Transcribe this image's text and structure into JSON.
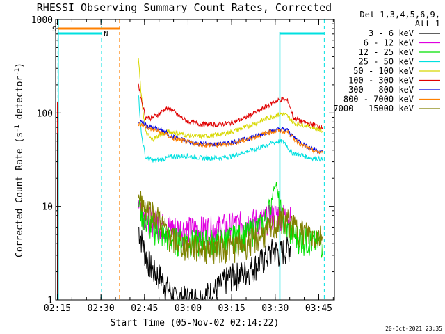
{
  "chart_data": {
    "type": "line",
    "title": "RHESSI Observing Summary Count Rates, Corrected",
    "xlabel": "Start Time (05-Nov-02 02:14:22)",
    "ylabel": "Corrected Count Rate (s",
    "ylabel_sup1": "-1",
    "ylabel_mid": " detector",
    "ylabel_sup2": "-1",
    "ylabel_end": ")",
    "x_range_minutes": [
      0,
      96
    ],
    "y_log": true,
    "ylim": [
      1,
      1000
    ],
    "x_ticks": [
      {
        "label": "02:15",
        "min": 0.6
      },
      {
        "label": "02:30",
        "min": 15.6
      },
      {
        "label": "02:45",
        "min": 30.6
      },
      {
        "label": "03:00",
        "min": 45.6
      },
      {
        "label": "03:15",
        "min": 60.6
      },
      {
        "label": "03:30",
        "min": 75.6
      },
      {
        "label": "03:45",
        "min": 90.6
      }
    ],
    "y_ticks": [
      {
        "label": "1",
        "value": 1
      },
      {
        "label": "10",
        "value": 10
      },
      {
        "label": "100",
        "value": 100
      },
      {
        "label": "1000",
        "value": 1000
      }
    ],
    "legend": {
      "header1": "Det 1,3,4,5,6,9,",
      "header2": "Att 1",
      "placement": "right"
    },
    "series": [
      {
        "name": "3 - 6 keV",
        "color": "#000000",
        "points": [
          [
            28.5,
            6
          ],
          [
            30,
            4
          ],
          [
            31,
            3
          ],
          [
            32,
            2.6
          ],
          [
            33,
            2.2
          ],
          [
            34,
            2
          ],
          [
            36,
            1.8
          ],
          [
            38,
            1.4
          ],
          [
            40,
            1.2
          ],
          [
            41,
            1.05
          ],
          [
            50,
            1.05
          ],
          [
            55,
            1.3
          ],
          [
            60,
            1.8
          ],
          [
            63,
            1.9
          ],
          [
            65,
            2
          ],
          [
            70,
            2.5
          ],
          [
            73,
            3
          ],
          [
            75,
            3.5
          ],
          [
            77,
            3.2
          ],
          [
            79,
            3.5
          ],
          [
            81,
            3.8
          ]
        ]
      },
      {
        "name": "6 - 12 keV",
        "color": "#e000e0",
        "points": [
          [
            28.5,
            12
          ],
          [
            30,
            9
          ],
          [
            32,
            7.5
          ],
          [
            34,
            7
          ],
          [
            36,
            6.5
          ],
          [
            38,
            6.2
          ],
          [
            40,
            6
          ],
          [
            45,
            5.8
          ],
          [
            50,
            5.8
          ],
          [
            55,
            6
          ],
          [
            60,
            6.3
          ],
          [
            65,
            6.8
          ],
          [
            70,
            7.2
          ],
          [
            73,
            7.5
          ],
          [
            75,
            8
          ],
          [
            77,
            8.5
          ],
          [
            79,
            8
          ],
          [
            81,
            7.5
          ]
        ]
      },
      {
        "name": "12 - 25 keV",
        "color": "#00e000",
        "points": [
          [
            28.5,
            11
          ],
          [
            30,
            8
          ],
          [
            32,
            6.5
          ],
          [
            34,
            5.8
          ],
          [
            36,
            5.2
          ],
          [
            38,
            4.8
          ],
          [
            40,
            4.5
          ],
          [
            45,
            4.3
          ],
          [
            50,
            4.2
          ],
          [
            55,
            4.3
          ],
          [
            60,
            4.6
          ],
          [
            65,
            5
          ],
          [
            70,
            6
          ],
          [
            72,
            7
          ],
          [
            74,
            10
          ],
          [
            75,
            15
          ],
          [
            76,
            18
          ],
          [
            77,
            10
          ],
          [
            79,
            6
          ],
          [
            82,
            5
          ],
          [
            85,
            4.5
          ],
          [
            88,
            4.2
          ],
          [
            92,
            4
          ]
        ]
      },
      {
        "name": "25 - 50 keV",
        "color": "#00e0e0",
        "points": [
          [
            28.5,
            165
          ],
          [
            29.5,
            60
          ],
          [
            31,
            33
          ],
          [
            34,
            31
          ],
          [
            37,
            32
          ],
          [
            40,
            34
          ],
          [
            45,
            35
          ],
          [
            50,
            33
          ],
          [
            55,
            33
          ],
          [
            60,
            34
          ],
          [
            65,
            38
          ],
          [
            70,
            42
          ],
          [
            73,
            46
          ],
          [
            75,
            48
          ],
          [
            77,
            50
          ],
          [
            79,
            48
          ],
          [
            81,
            38
          ],
          [
            85,
            35
          ],
          [
            88,
            33
          ],
          [
            92,
            32
          ]
        ]
      },
      {
        "name": "50 - 100 keV",
        "color": "#d8d800",
        "points": [
          [
            28.5,
            390
          ],
          [
            29.5,
            150
          ],
          [
            31,
            62
          ],
          [
            33,
            52
          ],
          [
            36,
            58
          ],
          [
            38,
            62
          ],
          [
            40,
            63
          ],
          [
            45,
            58
          ],
          [
            50,
            56
          ],
          [
            55,
            58
          ],
          [
            60,
            62
          ],
          [
            65,
            70
          ],
          [
            70,
            80
          ],
          [
            73,
            88
          ],
          [
            76,
            95
          ],
          [
            78,
            98
          ],
          [
            80,
            92
          ],
          [
            82,
            78
          ],
          [
            86,
            74
          ],
          [
            90,
            68
          ],
          [
            92,
            64
          ]
        ]
      },
      {
        "name": "100 - 300 keV",
        "color": "#e00000",
        "points": [
          [
            28.5,
            205
          ],
          [
            29.5,
            140
          ],
          [
            31,
            90
          ],
          [
            33,
            88
          ],
          [
            36,
            100
          ],
          [
            38,
            112
          ],
          [
            40,
            108
          ],
          [
            42,
            95
          ],
          [
            45,
            82
          ],
          [
            50,
            76
          ],
          [
            55,
            75
          ],
          [
            60,
            78
          ],
          [
            65,
            88
          ],
          [
            70,
            105
          ],
          [
            73,
            120
          ],
          [
            76,
            135
          ],
          [
            78,
            140
          ],
          [
            80,
            135
          ],
          [
            82,
            88
          ],
          [
            85,
            80
          ],
          [
            88,
            76
          ],
          [
            92,
            70
          ]
        ]
      },
      {
        "name": "300 - 800 keV",
        "color": "#0000e0",
        "points": [
          [
            28.5,
            80
          ],
          [
            30,
            78
          ],
          [
            32,
            72
          ],
          [
            35,
            68
          ],
          [
            38,
            62
          ],
          [
            40,
            56
          ],
          [
            45,
            50
          ],
          [
            50,
            47
          ],
          [
            55,
            46
          ],
          [
            60,
            48
          ],
          [
            65,
            52
          ],
          [
            70,
            58
          ],
          [
            73,
            63
          ],
          [
            76,
            66
          ],
          [
            78,
            67
          ],
          [
            80,
            65
          ],
          [
            82,
            55
          ],
          [
            85,
            47
          ],
          [
            88,
            42
          ],
          [
            92,
            38
          ]
        ]
      },
      {
        "name": "800 - 7000 keV",
        "color": "#ff8000",
        "points": [
          [
            28.5,
            76
          ],
          [
            30,
            74
          ],
          [
            32,
            69
          ],
          [
            35,
            64
          ],
          [
            38,
            59
          ],
          [
            40,
            54
          ],
          [
            45,
            49
          ],
          [
            50,
            46
          ],
          [
            55,
            45
          ],
          [
            60,
            47
          ],
          [
            65,
            51
          ],
          [
            70,
            57
          ],
          [
            73,
            62
          ],
          [
            76,
            64
          ],
          [
            78,
            64
          ],
          [
            80,
            62
          ],
          [
            82,
            53
          ],
          [
            85,
            45
          ],
          [
            88,
            40
          ],
          [
            92,
            37
          ]
        ]
      },
      {
        "name": "7000 - 15000 keV",
        "color": "#808000",
        "points": [
          [
            28.5,
            13
          ],
          [
            30,
            11
          ],
          [
            32,
            9.5
          ],
          [
            34,
            8.5
          ],
          [
            36,
            7
          ],
          [
            38,
            5.5
          ],
          [
            40,
            4.5
          ],
          [
            45,
            3.8
          ],
          [
            50,
            3.6
          ],
          [
            55,
            3.6
          ],
          [
            60,
            3.7
          ],
          [
            65,
            4
          ],
          [
            70,
            4.8
          ],
          [
            73,
            5.5
          ],
          [
            76,
            6.5
          ],
          [
            78,
            7.5
          ],
          [
            80,
            7
          ],
          [
            82,
            6
          ],
          [
            85,
            5.5
          ],
          [
            88,
            5
          ],
          [
            92,
            4.8
          ]
        ]
      }
    ],
    "annotations": [
      {
        "label": "S",
        "color": "#ff8000"
      },
      {
        "label": "N",
        "color": "#00e0e0"
      }
    ],
    "footer_date": "20-Oct-2021 23:35"
  }
}
